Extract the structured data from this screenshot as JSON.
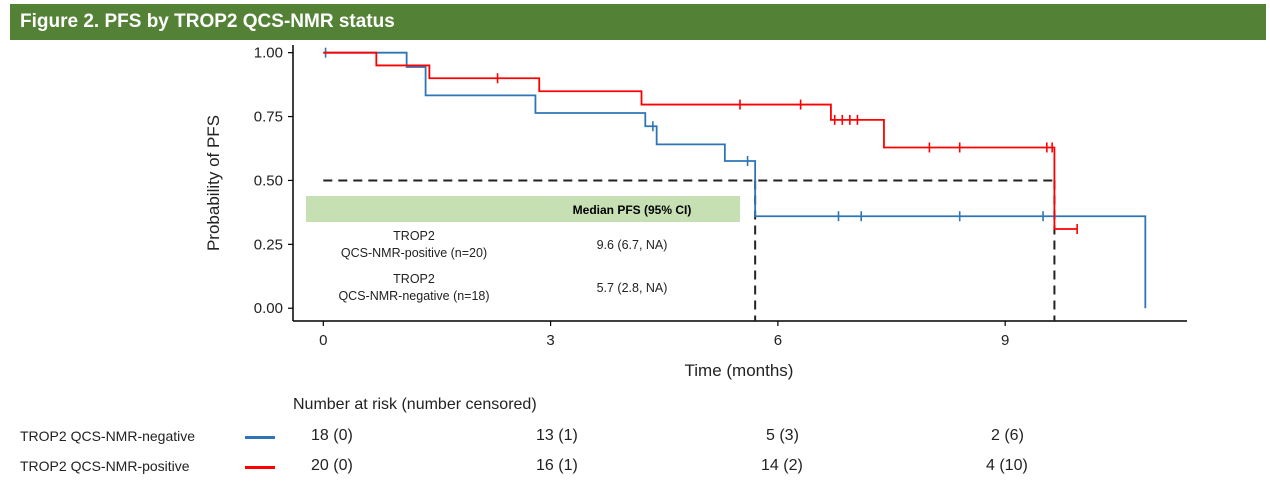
{
  "figure": {
    "title": "Figure 2. PFS by TROP2 QCS-NMR status"
  },
  "chart_data": {
    "type": "line",
    "subtype": "kaplan-meier",
    "xlabel": "Time (months)",
    "ylabel": "Probability of PFS",
    "xlim": [
      -0.4,
      11.4
    ],
    "ylim": [
      -0.05,
      1.03
    ],
    "x_ticks": [
      0,
      3,
      6,
      9
    ],
    "y_ticks": [
      0.0,
      0.25,
      0.5,
      0.75,
      1.0
    ],
    "y_tick_labels": [
      "0.00",
      "0.25",
      "0.50",
      "0.75",
      "1.00"
    ],
    "grid": false,
    "median_reference_line": 0.5,
    "series": [
      {
        "color": "#2e75b6",
        "steps": [
          [
            0,
            1.0
          ],
          [
            1.1,
            0.944
          ],
          [
            1.35,
            0.833
          ],
          [
            2.8,
            0.764
          ],
          [
            4.25,
            0.712
          ],
          [
            4.4,
            0.641
          ],
          [
            5.3,
            0.576
          ],
          [
            5.7,
            0.36
          ],
          [
            10.85,
            0.0
          ]
        ],
        "censored": [
          [
            0.03,
            1.0
          ],
          [
            4.35,
            0.712
          ],
          [
            5.6,
            0.576
          ],
          [
            6.8,
            0.36
          ],
          [
            7.1,
            0.36
          ],
          [
            8.4,
            0.36
          ],
          [
            9.5,
            0.36
          ]
        ]
      },
      {
        "color": "#ff0000",
        "steps": [
          [
            0,
            1.0
          ],
          [
            0.7,
            0.95
          ],
          [
            1.4,
            0.9
          ],
          [
            2.85,
            0.849
          ],
          [
            4.2,
            0.797
          ],
          [
            6.7,
            0.737
          ],
          [
            7.4,
            0.629
          ],
          [
            9.65,
            0.31
          ]
        ],
        "end_x": 9.95,
        "censored": [
          [
            2.3,
            0.9
          ],
          [
            5.5,
            0.797
          ],
          [
            6.3,
            0.797
          ],
          [
            6.75,
            0.737
          ],
          [
            6.85,
            0.737
          ],
          [
            6.95,
            0.737
          ],
          [
            7.05,
            0.737
          ],
          [
            8.0,
            0.629
          ],
          [
            8.4,
            0.629
          ],
          [
            9.55,
            0.629
          ],
          [
            9.62,
            0.629
          ],
          [
            9.95,
            0.31
          ]
        ]
      }
    ],
    "median_drops": [
      5.7,
      9.65
    ]
  },
  "median_table": {
    "header": "Median PFS (95% CI)",
    "rows": [
      {
        "label_line1": "TROP2",
        "label_line2": "QCS-NMR-positive (n=20)",
        "value": "9.6 (6.7, NA)"
      },
      {
        "label_line1": "TROP2",
        "label_line2": "QCS-NMR-negative (n=18)",
        "value": "5.7 (2.8, NA)"
      }
    ]
  },
  "risk_table": {
    "heading": "Number at risk (number censored)",
    "rows": [
      {
        "label": "TROP2 QCS-NMR-negative",
        "color": "#2e75b6",
        "values": [
          "18 (0)",
          "13 (1)",
          "5 (3)",
          "2 (6)"
        ]
      },
      {
        "label": "TROP2 QCS-NMR-positive",
        "color": "#ff0000",
        "values": [
          "20 (0)",
          "16 (1)",
          "14 (2)",
          "4 (10)"
        ]
      }
    ]
  }
}
